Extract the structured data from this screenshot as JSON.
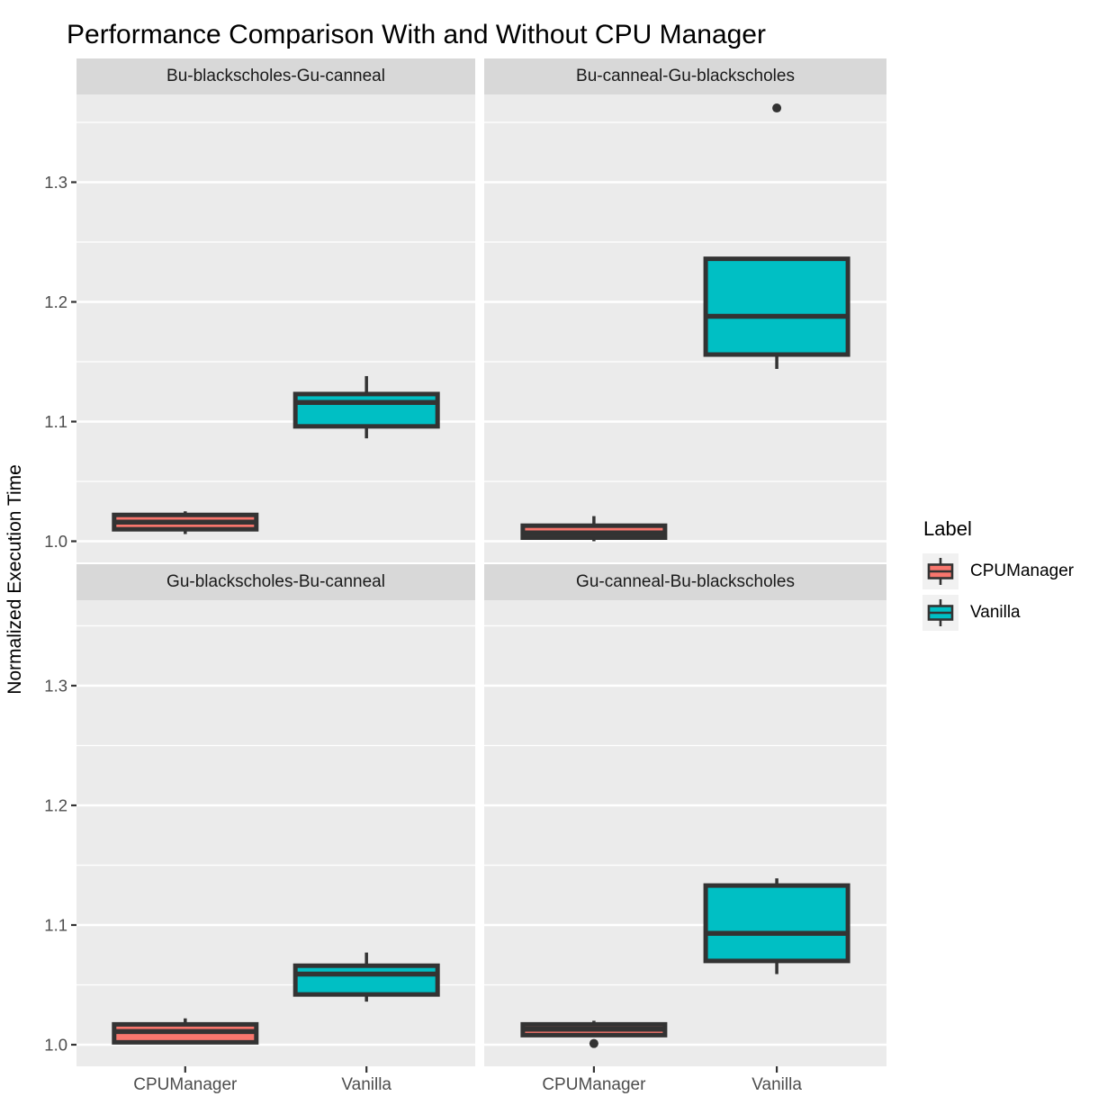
{
  "chart_data": {
    "type": "boxplot",
    "title": "Performance Comparison With and Without CPU Manager",
    "ylabel": "Normalized Execution Time",
    "xlabel": "",
    "categories": [
      "CPUManager",
      "Vanilla"
    ],
    "y_axis": {
      "ticks": [
        "1.0",
        "1.1",
        "1.2",
        "1.3"
      ],
      "minor_step": 0.05,
      "range": [
        0.982,
        1.376
      ],
      "grid": true
    },
    "legend": {
      "title": "Label",
      "position": "right",
      "entries": [
        {
          "label": "CPUManager",
          "color": "#F8766D"
        },
        {
          "label": "Vanilla",
          "color": "#00BFC4"
        }
      ]
    },
    "style": {
      "panel_bg": "#EBEBEB",
      "strip_bg": "#D8D8D8",
      "grid_color": "#FFFFFF",
      "box_outline": "#333333",
      "axis_text": "#4D4D4D",
      "tick_mark": "#333333"
    },
    "facets": [
      {
        "title": "Bu-blackscholes-Gu-canneal",
        "boxes": [
          {
            "group": "CPUManager",
            "min": 1.006,
            "q1": 1.01,
            "median": 1.016,
            "q3": 1.022,
            "max": 1.025,
            "outliers": []
          },
          {
            "group": "Vanilla",
            "min": 1.086,
            "q1": 1.096,
            "median": 1.116,
            "q3": 1.123,
            "max": 1.138,
            "outliers": []
          }
        ]
      },
      {
        "title": "Bu-canneal-Gu-blackscholes",
        "boxes": [
          {
            "group": "CPUManager",
            "min": 1.0,
            "q1": 1.003,
            "median": 1.007,
            "q3": 1.013,
            "max": 1.021,
            "outliers": []
          },
          {
            "group": "Vanilla",
            "min": 1.144,
            "q1": 1.156,
            "median": 1.188,
            "q3": 1.236,
            "max": 1.236,
            "outliers": [
              1.362
            ]
          }
        ]
      },
      {
        "title": "Gu-blackscholes-Bu-canneal",
        "boxes": [
          {
            "group": "CPUManager",
            "min": 1.002,
            "q1": 1.002,
            "median": 1.011,
            "q3": 1.017,
            "max": 1.022,
            "outliers": []
          },
          {
            "group": "Vanilla",
            "min": 1.036,
            "q1": 1.042,
            "median": 1.059,
            "q3": 1.066,
            "max": 1.077,
            "outliers": []
          }
        ]
      },
      {
        "title": "Gu-canneal-Bu-blackscholes",
        "boxes": [
          {
            "group": "CPUManager",
            "min": 1.008,
            "q1": 1.008,
            "median": 1.013,
            "q3": 1.017,
            "max": 1.02,
            "outliers": [
              1.001
            ]
          },
          {
            "group": "Vanilla",
            "min": 1.059,
            "q1": 1.07,
            "median": 1.093,
            "q3": 1.133,
            "max": 1.139,
            "outliers": []
          }
        ]
      }
    ]
  }
}
